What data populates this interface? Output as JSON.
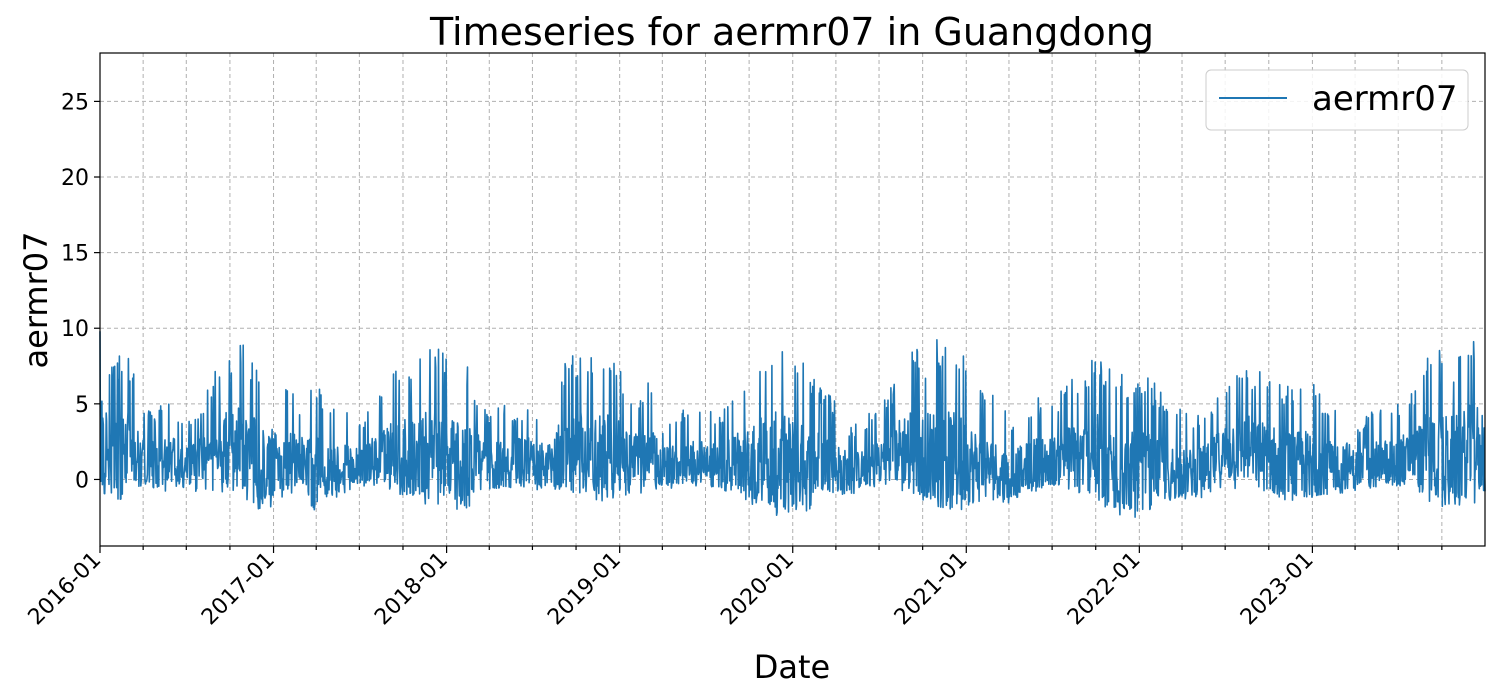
{
  "chart_data": {
    "type": "line",
    "title": "Timeseries for aermr07 in Guangdong",
    "xlabel": "Date",
    "ylabel": "aermr07",
    "xlim": [
      "2016-01-01",
      "2023-12-31"
    ],
    "ylim": [
      -4.4,
      28.2
    ],
    "y_ticks": [
      0,
      5,
      10,
      15,
      20,
      25
    ],
    "x_ticks": [
      "2016-01",
      "2017-01",
      "2018-01",
      "2019-01",
      "2020-01",
      "2021-01",
      "2022-01",
      "2023-01"
    ],
    "x_minor_ticks": "every 3 months",
    "grid": true,
    "legend": {
      "position": "top-right",
      "entries": [
        "aermr07"
      ]
    },
    "colors": {
      "series": "#1f77b4",
      "grid": "#b0b0b0"
    },
    "series": [
      {
        "name": "aermr07",
        "x": [
          "2016-01-01",
          "2016-02-01",
          "2016-03-01",
          "2016-04-01",
          "2016-05-01",
          "2016-06-01",
          "2016-07-01",
          "2016-08-01",
          "2016-09-01",
          "2016-10-01",
          "2016-11-01",
          "2016-12-01",
          "2017-01-01",
          "2017-02-01",
          "2017-03-01",
          "2017-04-01",
          "2017-05-01",
          "2017-06-01",
          "2017-07-01",
          "2017-08-01",
          "2017-09-01",
          "2017-10-01",
          "2017-11-01",
          "2017-12-01",
          "2018-01-01",
          "2018-02-01",
          "2018-03-01",
          "2018-04-01",
          "2018-05-01",
          "2018-06-01",
          "2018-07-01",
          "2018-08-01",
          "2018-09-01",
          "2018-10-01",
          "2018-11-01",
          "2018-12-01",
          "2019-01-01",
          "2019-02-01",
          "2019-03-01",
          "2019-04-01",
          "2019-05-01",
          "2019-06-01",
          "2019-07-01",
          "2019-08-01",
          "2019-09-01",
          "2019-10-01",
          "2019-11-01",
          "2019-12-01",
          "2020-01-01",
          "2020-02-01",
          "2020-03-01",
          "2020-04-01",
          "2020-05-01",
          "2020-06-01",
          "2020-07-01",
          "2020-08-01",
          "2020-09-01",
          "2020-10-01",
          "2020-11-01",
          "2020-12-01",
          "2021-01-01",
          "2021-02-01",
          "2021-03-01",
          "2021-04-01",
          "2021-05-01",
          "2021-06-01",
          "2021-07-01",
          "2021-08-01",
          "2021-09-01",
          "2021-10-01",
          "2021-11-01",
          "2021-12-01",
          "2022-01-01",
          "2022-02-01",
          "2022-03-01",
          "2022-04-01",
          "2022-05-01",
          "2022-06-01",
          "2022-07-01",
          "2022-08-01",
          "2022-09-01",
          "2022-10-01",
          "2022-11-01",
          "2022-12-01",
          "2023-01-01",
          "2023-02-01",
          "2023-03-01",
          "2023-04-01",
          "2023-05-01",
          "2023-06-01",
          "2023-07-01",
          "2023-08-01",
          "2023-09-01",
          "2023-10-01",
          "2023-11-01",
          "2023-12-01"
        ],
        "low": [
          -1.0,
          -2.4,
          -0.6,
          -0.5,
          -0.9,
          -0.8,
          -0.6,
          -1.0,
          -1.2,
          -0.8,
          -1.5,
          -2.1,
          -1.8,
          -1.0,
          -0.8,
          -2.3,
          -1.5,
          -0.9,
          -0.5,
          -0.4,
          -1.0,
          -1.2,
          -1.7,
          -1.8,
          -1.6,
          -2.2,
          -1.5,
          -0.9,
          -0.8,
          -0.5,
          -0.6,
          -0.9,
          -1.0,
          -1.5,
          -1.3,
          -1.5,
          -1.3,
          -1.0,
          -0.8,
          -0.7,
          -0.5,
          -0.5,
          -0.4,
          -0.6,
          -1.4,
          -1.6,
          -2.0,
          -2.6,
          -2.5,
          -2.7,
          -1.2,
          -1.0,
          -1.0,
          -0.8,
          -0.6,
          -0.6,
          -1.0,
          -1.6,
          -1.8,
          -2.0,
          -2.2,
          -1.9,
          -1.5,
          -1.6,
          -1.0,
          -0.8,
          -0.7,
          -0.8,
          -1.1,
          -1.6,
          -2.3,
          -2.5,
          -2.6,
          -2.0,
          -1.8,
          -1.5,
          -1.4,
          -1.0,
          -0.8,
          -0.6,
          -0.8,
          -1.4,
          -1.7,
          -1.9,
          -1.5,
          -1.2,
          -1.0,
          -0.8,
          -0.6,
          -0.5,
          -0.5,
          -0.6,
          -1.5,
          -1.9,
          -2.0,
          -1.6
        ],
        "high": [
          9.8,
          8.2,
          8.3,
          4.8,
          5.0,
          5.3,
          4.1,
          5.4,
          7.5,
          8.6,
          9.4,
          7.7,
          7.5,
          6.4,
          5.2,
          6.4,
          4.8,
          5.2,
          3.9,
          5.0,
          7.2,
          8.4,
          8.5,
          8.8,
          8.6,
          8.2,
          6.6,
          4.6,
          4.9,
          4.9,
          5.2,
          4.3,
          7.6,
          8.6,
          8.2,
          8.5,
          7.4,
          5.6,
          6.9,
          3.9,
          4.3,
          5.0,
          4.6,
          4.6,
          6.1,
          7.8,
          8.8,
          9.3,
          8.9,
          7.6,
          6.4,
          5.1,
          3.5,
          4.0,
          5.3,
          6.4,
          9.2,
          8.4,
          9.4,
          8.9,
          8.5,
          6.3,
          5.5,
          4.2,
          4.6,
          5.4,
          5.2,
          6.6,
          7.0,
          8.5,
          7.5,
          7.1,
          7.0,
          6.5,
          5.7,
          4.5,
          4.3,
          5.0,
          7.0,
          8.3,
          7.3,
          7.4,
          6.5,
          6.8,
          6.6,
          4.8,
          5.9,
          3.8,
          4.4,
          4.8,
          5.3,
          5.9,
          8.7,
          8.6,
          8.5,
          9.5
        ]
      }
    ]
  }
}
